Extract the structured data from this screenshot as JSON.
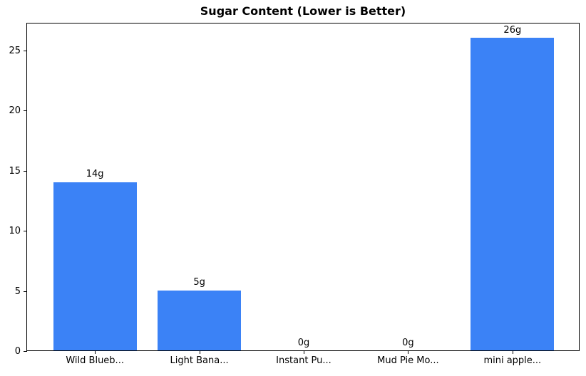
{
  "chart_data": {
    "type": "bar",
    "title": "Sugar Content (Lower is Better)",
    "categories": [
      "Wild Blueb...",
      "Light Bana...",
      "Instant Pu...",
      "Mud Pie Mo...",
      "mini apple..."
    ],
    "values": [
      14,
      5,
      0,
      0,
      26
    ],
    "value_labels": [
      "14g",
      "5g",
      "0g",
      "0g",
      "26g"
    ],
    "xlabel": "",
    "ylabel": "",
    "yticks": [
      0,
      5,
      10,
      15,
      20,
      25
    ],
    "ylim": [
      0,
      27.3
    ],
    "xlim": [
      -0.65,
      4.65
    ],
    "bar_width_units": 0.8,
    "bar_color": "#3b82f6",
    "spine_color": "#000000",
    "text_color": "#000000",
    "background_color": "#ffffff",
    "grid": false,
    "legend": null
  }
}
